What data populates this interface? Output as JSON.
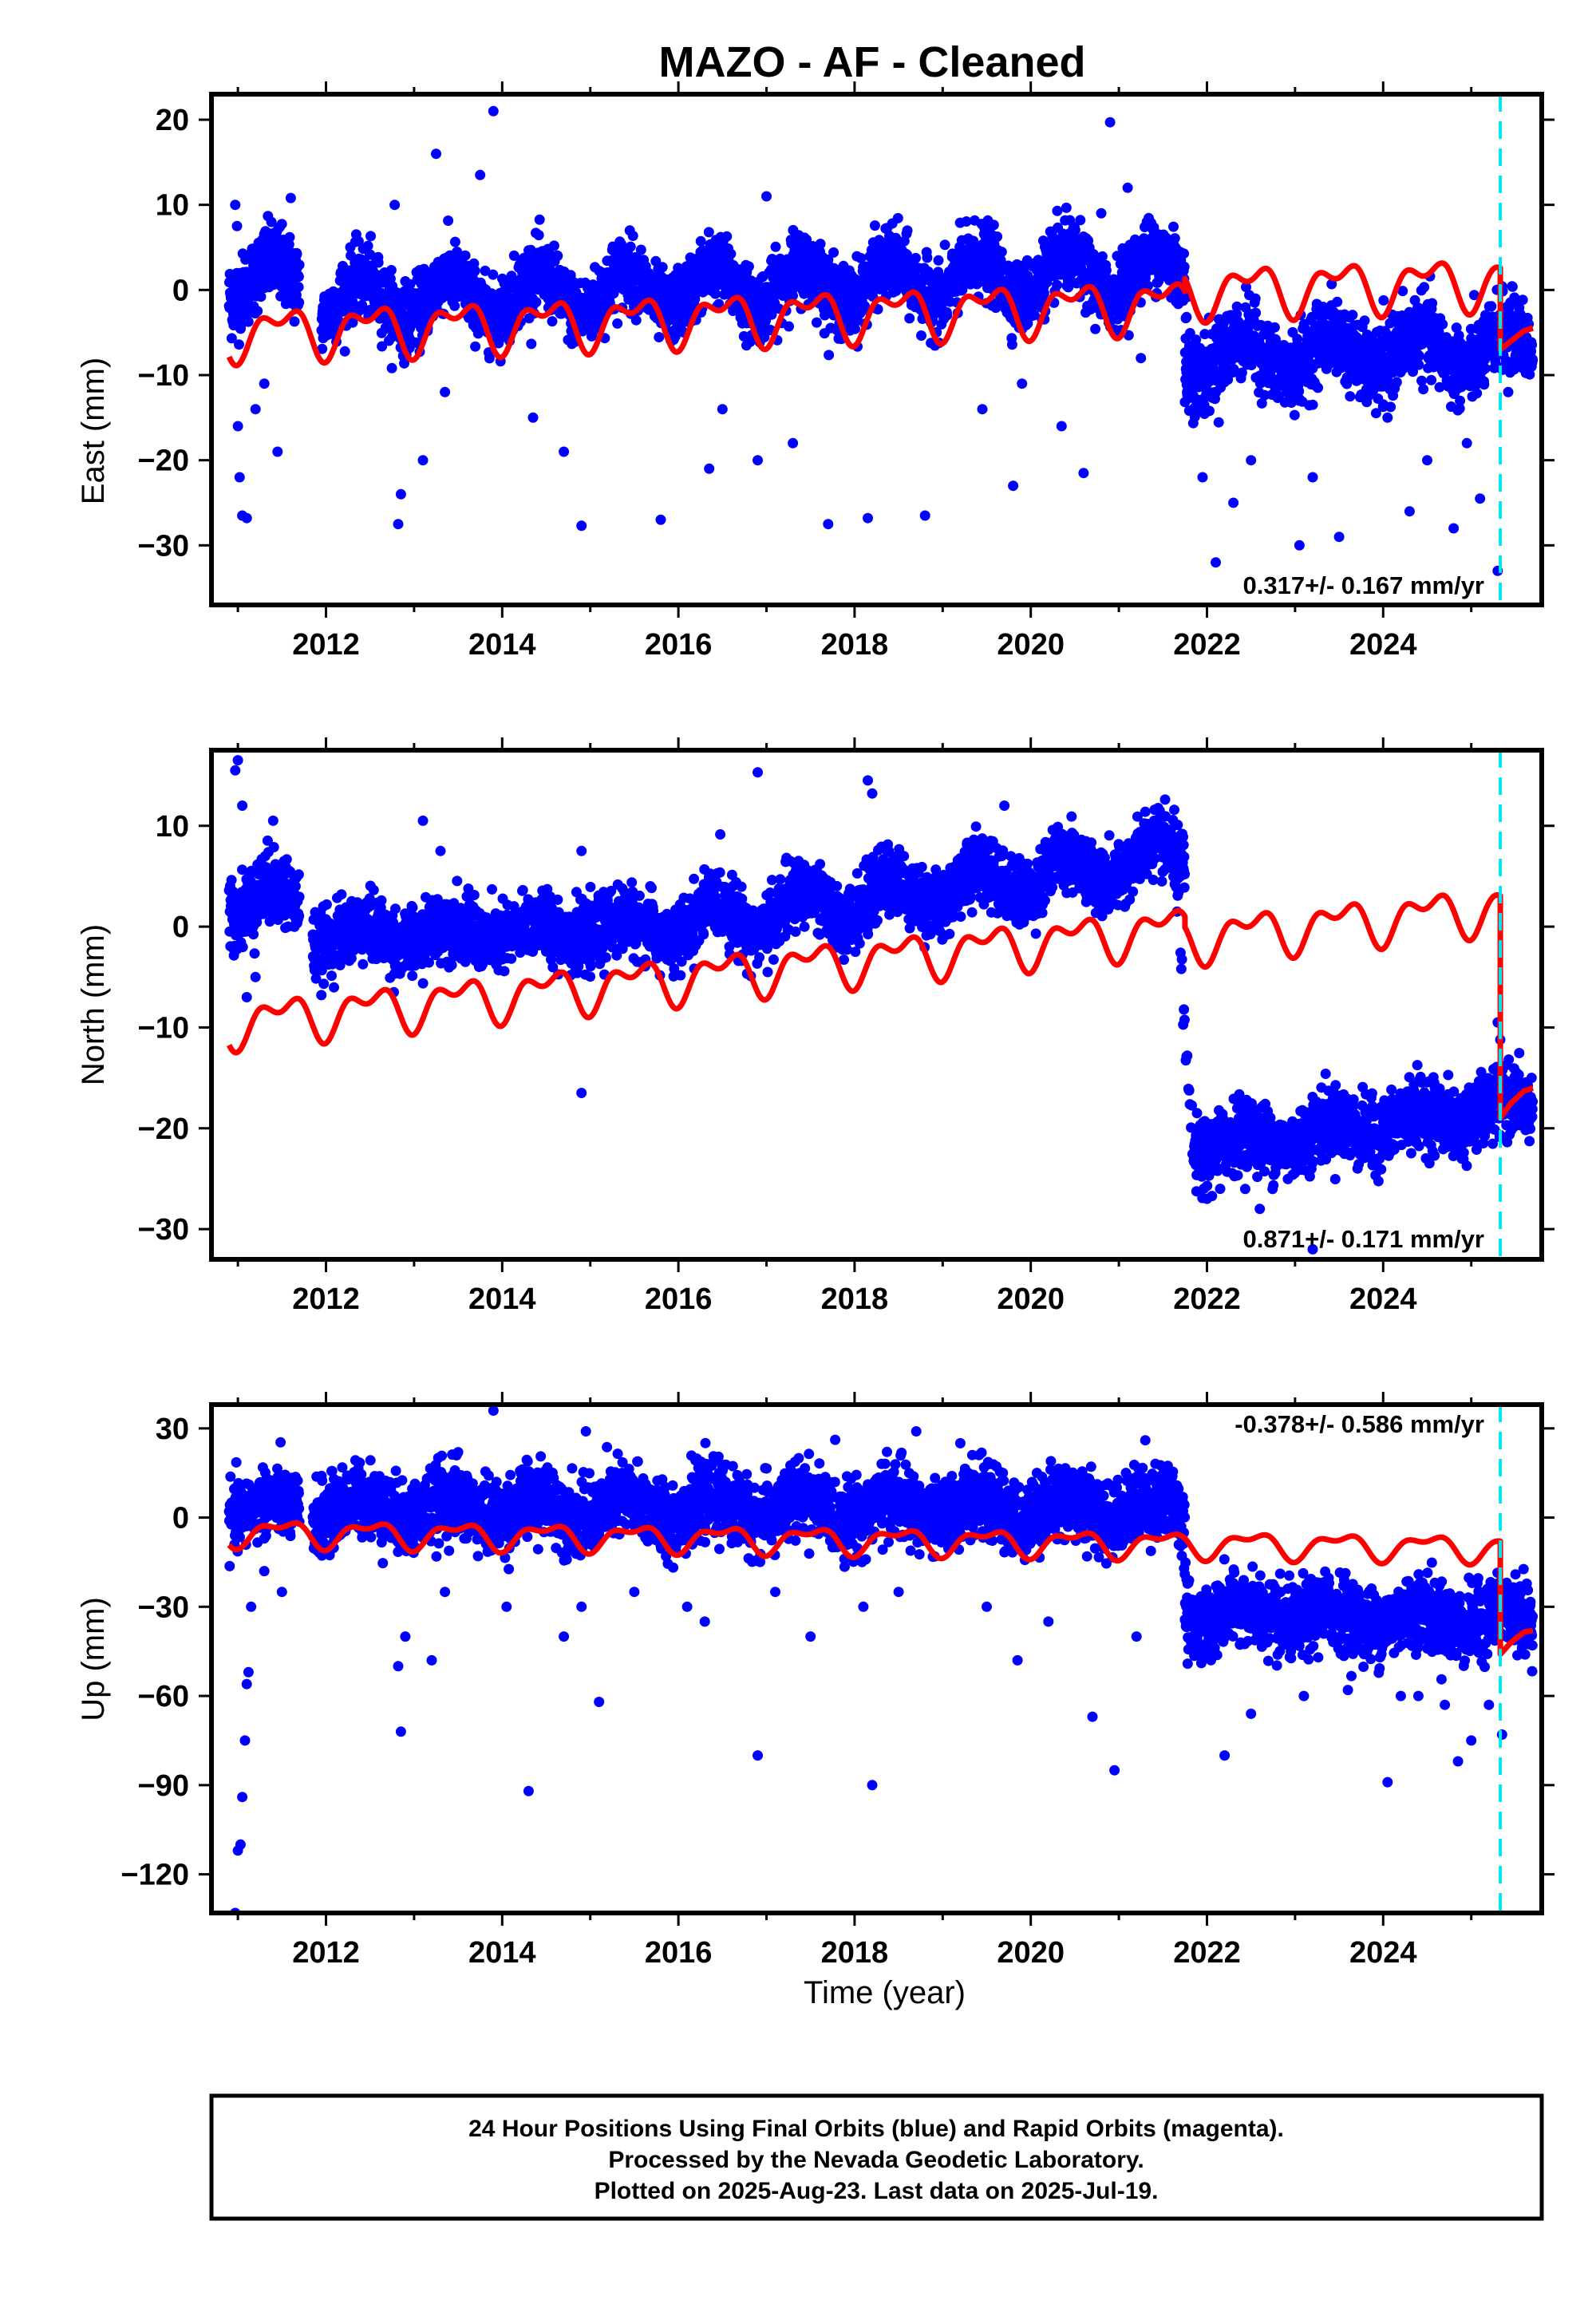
{
  "title": "MAZO  - AF - Cleaned",
  "colors": {
    "final_orbits": "#0000ff",
    "model": "#ff0000",
    "event_line": "#00e5ee",
    "frame": "#000000"
  },
  "footer": {
    "line1": "24 Hour Positions Using Final Orbits (blue) and Rapid Orbits (magenta).",
    "line2": "Processed by the Nevada Geodetic Laboratory.",
    "line3": "Plotted on 2025-Aug-23. Last data on 2025-Jul-19."
  },
  "chart_data": [
    {
      "type": "scatter",
      "panel": "east",
      "ylabel": "East (mm)",
      "xlabel": "",
      "xlim": [
        2010.7,
        2025.8
      ],
      "ylim": [
        -37,
        23
      ],
      "xticks": [
        2012,
        2014,
        2016,
        2018,
        2020,
        2022,
        2024
      ],
      "yticks": [
        -30,
        -20,
        -10,
        0,
        10,
        20
      ],
      "rate_text": "0.317+/- 0.167 mm/yr",
      "event_line_x": 2025.33,
      "model": {
        "pre_break": {
          "x_start": 2010.9,
          "x_end": 2021.75,
          "offset_at_2011": -5.0,
          "trend_mm_per_yr": 0.317,
          "annual_amplitude": 2.4,
          "semiannual_amplitude": 1.5
        },
        "post_break": {
          "x_start": 2021.75,
          "x_end": 2025.33,
          "offset_at_2022": 0.0,
          "trend_mm_per_yr": 0.317,
          "annual_amplitude": 2.4,
          "semiannual_amplitude": 1.5
        },
        "tail": [
          [
            2025.33,
            -7.0
          ],
          [
            2025.45,
            -6.0
          ],
          [
            2025.6,
            -4.8
          ],
          [
            2025.7,
            -4.5
          ]
        ]
      },
      "data_bands": [
        {
          "x_start": 2010.9,
          "x_end": 2011.7,
          "center_at_start": 1.0,
          "trend": 0.3,
          "seasonal_amp": 2.2,
          "scatter": 2.2
        },
        {
          "x_start": 2011.95,
          "x_end": 2021.75,
          "center_at_start": -1.3,
          "trend": 0.35,
          "seasonal_amp": 2.4,
          "scatter": 2.0
        },
        {
          "x_start": 2021.75,
          "x_end": 2025.7,
          "center_at_start": -8.0,
          "trend": 0.3,
          "seasonal_amp": 2.2,
          "scatter": 2.2
        }
      ],
      "step_points": [
        [
          2021.62,
          6
        ],
        [
          2021.68,
          3
        ],
        [
          2021.72,
          0
        ],
        [
          2021.76,
          -3
        ],
        [
          2021.8,
          -6
        ],
        [
          2021.85,
          -8
        ]
      ],
      "outliers": [
        [
          2010.97,
          10
        ],
        [
          2010.99,
          7.5
        ],
        [
          2011.0,
          -16
        ],
        [
          2011.02,
          -22
        ],
        [
          2011.05,
          -26.5
        ],
        [
          2011.1,
          -26.8
        ],
        [
          2011.2,
          -14
        ],
        [
          2011.3,
          -11
        ],
        [
          2011.45,
          -19
        ],
        [
          2011.6,
          10.8
        ],
        [
          2012.78,
          10
        ],
        [
          2012.82,
          -27.5
        ],
        [
          2012.85,
          -24
        ],
        [
          2013.1,
          -20
        ],
        [
          2013.25,
          16
        ],
        [
          2013.35,
          -12
        ],
        [
          2013.75,
          13.5
        ],
        [
          2013.9,
          21
        ],
        [
          2014.35,
          -15
        ],
        [
          2014.7,
          -19
        ],
        [
          2014.9,
          -27.7
        ],
        [
          2015.8,
          -27
        ],
        [
          2016.35,
          -21
        ],
        [
          2016.5,
          -14
        ],
        [
          2016.9,
          -20
        ],
        [
          2017.0,
          11
        ],
        [
          2017.3,
          -18
        ],
        [
          2017.7,
          -27.5
        ],
        [
          2018.15,
          -26.8
        ],
        [
          2018.8,
          -26.5
        ],
        [
          2019.45,
          -14
        ],
        [
          2019.8,
          -23
        ],
        [
          2019.9,
          -11
        ],
        [
          2020.35,
          -16
        ],
        [
          2020.6,
          -21.5
        ],
        [
          2020.8,
          9
        ],
        [
          2020.9,
          19.7
        ],
        [
          2021.1,
          12
        ],
        [
          2021.25,
          -8
        ],
        [
          2021.95,
          -22
        ],
        [
          2022.1,
          -32
        ],
        [
          2022.3,
          -25
        ],
        [
          2022.5,
          -20
        ],
        [
          2023.05,
          -30
        ],
        [
          2023.2,
          -22
        ],
        [
          2023.5,
          -29
        ],
        [
          2024.05,
          -15
        ],
        [
          2024.3,
          -26
        ],
        [
          2024.5,
          -20
        ],
        [
          2024.8,
          -28
        ],
        [
          2024.95,
          -18
        ],
        [
          2025.1,
          -24.5
        ],
        [
          2025.3,
          -33
        ],
        [
          2025.42,
          -12
        ]
      ]
    },
    {
      "type": "scatter",
      "panel": "north",
      "ylabel": "North (mm)",
      "xlabel": "",
      "xlim": [
        2010.7,
        2025.8
      ],
      "ylim": [
        -33,
        17.5
      ],
      "xticks": [
        2012,
        2014,
        2016,
        2018,
        2020,
        2022,
        2024
      ],
      "yticks": [
        -30,
        -20,
        -10,
        0,
        10
      ],
      "rate_text": "0.871+/- 0.171 mm/yr",
      "event_line_x": 2025.33,
      "model": {
        "pre_break": {
          "x_start": 2010.9,
          "x_end": 2021.75,
          "offset_at_2011": -9.5,
          "trend_mm_per_yr": 0.871,
          "annual_amplitude": 1.8,
          "semiannual_amplitude": 1.2
        },
        "post_break": {
          "x_start": 2021.75,
          "x_end": 2025.33,
          "offset_at_2022": -1.0,
          "trend_mm_per_yr": 0.871,
          "annual_amplitude": 1.8,
          "semiannual_amplitude": 1.2
        },
        "tail": [
          [
            2025.33,
            -19.0
          ],
          [
            2025.45,
            -17.5
          ],
          [
            2025.6,
            -16.3
          ],
          [
            2025.7,
            -16.0
          ]
        ]
      },
      "data_bands": [
        {
          "x_start": 2010.9,
          "x_end": 2011.7,
          "center_at_start": 2.5,
          "trend": 0.0,
          "seasonal_amp": 1.5,
          "scatter": 1.8
        },
        {
          "x_start": 2011.85,
          "x_end": 2015.9,
          "center_at_start": -1.0,
          "trend": 0.2,
          "seasonal_amp": 1.0,
          "scatter": 1.6
        },
        {
          "x_start": 2015.9,
          "x_end": 2021.75,
          "center_at_start": 0.0,
          "trend": 1.2,
          "seasonal_amp": 1.8,
          "scatter": 1.6
        },
        {
          "x_start": 2021.85,
          "x_end": 2025.7,
          "center_at_start": -22.0,
          "trend": 1.1,
          "seasonal_amp": 1.0,
          "scatter": 1.7
        }
      ],
      "step_points": [
        [
          2021.62,
          6
        ],
        [
          2021.66,
          2
        ],
        [
          2021.7,
          -3
        ],
        [
          2021.73,
          -8
        ],
        [
          2021.76,
          -13
        ],
        [
          2021.79,
          -17
        ],
        [
          2021.82,
          -20
        ],
        [
          2021.86,
          -22
        ]
      ],
      "outliers": [
        [
          2010.97,
          15.5
        ],
        [
          2011.0,
          16.5
        ],
        [
          2011.05,
          12
        ],
        [
          2011.2,
          -5
        ],
        [
          2011.4,
          10.5
        ],
        [
          2011.1,
          -7
        ],
        [
          2013.1,
          10.5
        ],
        [
          2013.3,
          7.5
        ],
        [
          2014.9,
          7.5
        ],
        [
          2014.9,
          -16.5
        ],
        [
          2016.9,
          15.3
        ],
        [
          2018.15,
          14.5
        ],
        [
          2018.2,
          13.2
        ],
        [
          2019.7,
          12
        ],
        [
          2021.4,
          10.5
        ],
        [
          2022.0,
          -27
        ],
        [
          2022.15,
          -26
        ],
        [
          2022.6,
          -28
        ],
        [
          2023.2,
          -32
        ],
        [
          2025.3,
          -9.5
        ]
      ]
    },
    {
      "type": "scatter",
      "panel": "up",
      "ylabel": "Up (mm)",
      "xlabel": "Time (year)",
      "xlim": [
        2010.7,
        2025.8
      ],
      "ylim": [
        -133,
        38
      ],
      "xticks": [
        2012,
        2014,
        2016,
        2018,
        2020,
        2022,
        2024
      ],
      "yticks": [
        -120,
        -90,
        -60,
        -30,
        0,
        30
      ],
      "rate_text": "-0.378+/- 0.586 mm/yr",
      "event_line_x": 2025.33,
      "model": {
        "pre_break": {
          "x_start": 2010.9,
          "x_end": 2021.75,
          "offset_at_2011": -5.0,
          "trend_mm_per_yr": -0.378,
          "annual_amplitude": 3.8,
          "semiannual_amplitude": 2.0
        },
        "post_break": {
          "x_start": 2021.75,
          "x_end": 2025.33,
          "offset_at_2022": -9.0,
          "trend_mm_per_yr": -0.378,
          "annual_amplitude": 3.8,
          "semiannual_amplitude": 2.0
        },
        "tail": [
          [
            2025.33,
            -46
          ],
          [
            2025.45,
            -42
          ],
          [
            2025.6,
            -38.5
          ],
          [
            2025.7,
            -38
          ]
        ]
      },
      "data_bands": [
        {
          "x_start": 2010.9,
          "x_end": 2011.7,
          "center_at_start": 3.0,
          "trend": 0.0,
          "seasonal_amp": 3.0,
          "scatter": 5.5
        },
        {
          "x_start": 2011.85,
          "x_end": 2021.75,
          "center_at_start": 3.0,
          "trend": 0.0,
          "seasonal_amp": 3.5,
          "scatter": 6.0
        },
        {
          "x_start": 2021.75,
          "x_end": 2025.7,
          "center_at_start": -33.0,
          "trend": -0.3,
          "seasonal_amp": 3.0,
          "scatter": 6.0
        }
      ],
      "step_points": [
        [
          2021.62,
          8
        ],
        [
          2021.66,
          0
        ],
        [
          2021.7,
          -8
        ],
        [
          2021.74,
          -16
        ],
        [
          2021.78,
          -22
        ],
        [
          2021.82,
          -28
        ],
        [
          2021.87,
          -32
        ]
      ],
      "outliers": [
        [
          2010.97,
          -133
        ],
        [
          2011.0,
          -112
        ],
        [
          2011.03,
          -110
        ],
        [
          2011.05,
          -94
        ],
        [
          2011.08,
          -75
        ],
        [
          2011.1,
          -56
        ],
        [
          2011.12,
          -52
        ],
        [
          2011.15,
          -30
        ],
        [
          2011.3,
          -18
        ],
        [
          2011.5,
          -25
        ],
        [
          2012.05,
          -10
        ],
        [
          2012.82,
          -50
        ],
        [
          2012.85,
          -72
        ],
        [
          2012.9,
          -40
        ],
        [
          2013.2,
          -48
        ],
        [
          2013.35,
          -25
        ],
        [
          2013.5,
          22
        ],
        [
          2013.9,
          36
        ],
        [
          2014.05,
          -30
        ],
        [
          2014.3,
          -92
        ],
        [
          2014.7,
          -40
        ],
        [
          2014.9,
          -30
        ],
        [
          2014.95,
          29
        ],
        [
          2015.1,
          -62
        ],
        [
          2015.5,
          -25
        ],
        [
          2016.1,
          -30
        ],
        [
          2016.3,
          -35
        ],
        [
          2016.9,
          -80
        ],
        [
          2017.1,
          -25
        ],
        [
          2017.5,
          -40
        ],
        [
          2018.1,
          -30
        ],
        [
          2018.2,
          -90
        ],
        [
          2018.5,
          -25
        ],
        [
          2018.7,
          29
        ],
        [
          2019.2,
          25
        ],
        [
          2019.5,
          -30
        ],
        [
          2019.85,
          -48
        ],
        [
          2020.2,
          -35
        ],
        [
          2020.7,
          -67
        ],
        [
          2020.95,
          -85
        ],
        [
          2021.2,
          -40
        ],
        [
          2021.3,
          26
        ],
        [
          2022.2,
          -80
        ],
        [
          2022.5,
          -66
        ],
        [
          2023.1,
          -60
        ],
        [
          2023.6,
          -58
        ],
        [
          2024.05,
          -89
        ],
        [
          2024.2,
          -60
        ],
        [
          2024.4,
          -60
        ],
        [
          2024.7,
          -63
        ],
        [
          2024.85,
          -82
        ],
        [
          2025.0,
          -75
        ],
        [
          2025.2,
          -63
        ],
        [
          2025.35,
          -73
        ]
      ]
    }
  ]
}
